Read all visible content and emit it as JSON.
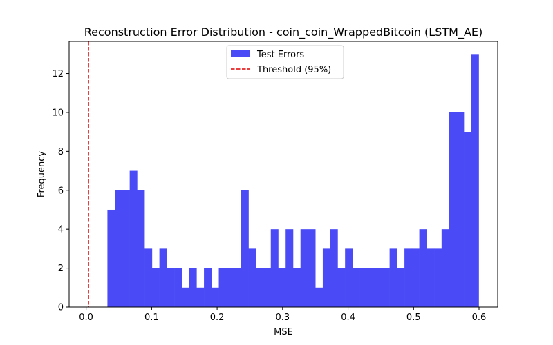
{
  "chart_data": {
    "type": "bar",
    "title": "Reconstruction Error Distribution - coin_coin_WrappedBitcoin (LSTM_AE)",
    "xlabel": "MSE",
    "ylabel": "Frequency",
    "xlim": [
      -0.026,
      0.6285
    ],
    "ylim": [
      0,
      13.65
    ],
    "xticks": [
      0.0,
      0.1,
      0.2,
      0.3,
      0.4,
      0.5,
      0.6
    ],
    "xtick_labels": [
      "0.0",
      "0.1",
      "0.2",
      "0.3",
      "0.4",
      "0.5",
      "0.6"
    ],
    "yticks": [
      0,
      2,
      4,
      6,
      8,
      10,
      12
    ],
    "ytick_labels": [
      "0",
      "2",
      "4",
      "6",
      "8",
      "10",
      "12"
    ],
    "bins": {
      "start": 0.0325,
      "end": 0.5995,
      "counts": [
        5,
        6,
        6,
        7,
        6,
        3,
        2,
        3,
        2,
        2,
        1,
        2,
        1,
        2,
        1,
        2,
        2,
        2,
        6,
        3,
        2,
        2,
        4,
        2,
        4,
        2,
        4,
        4,
        1,
        3,
        4,
        2,
        3,
        2,
        2,
        2,
        2,
        2,
        3,
        2,
        3,
        3,
        4,
        3,
        3,
        4,
        10,
        10,
        9,
        13
      ]
    },
    "series": [
      {
        "name": "Test Errors",
        "kind": "histogram",
        "color": "#4a4af7"
      },
      {
        "name": "Threshold (95%)",
        "kind": "vline",
        "x": 0.0035,
        "color": "#e00000",
        "style": "dashed"
      }
    ],
    "legend": {
      "placement": "top-center"
    },
    "grid": false
  }
}
